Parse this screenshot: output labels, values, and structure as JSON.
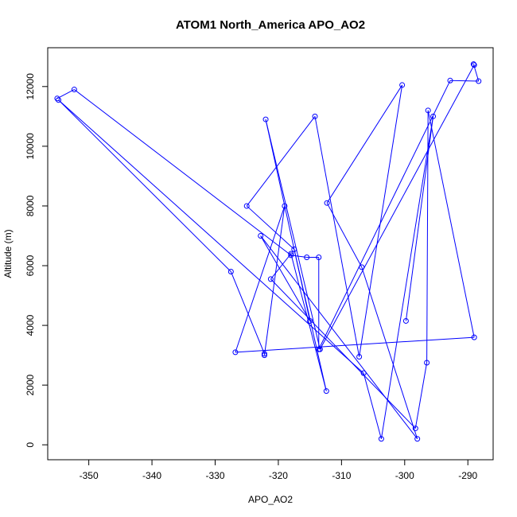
{
  "chart_data": {
    "type": "line",
    "title": "ATOM1 North_America APO_AO2",
    "xlabel": "APO_AO2",
    "ylabel": "Altitude (m)",
    "xlim": [
      -356.5,
      -286
    ],
    "ylim": [
      -500,
      13300
    ],
    "xticks": [
      -350,
      -340,
      -330,
      -320,
      -310,
      -300,
      -290
    ],
    "yticks": [
      0,
      2000,
      4000,
      6000,
      8000,
      10000,
      12000
    ],
    "grid": false,
    "color": "#0000ff",
    "series": [
      {
        "points": [
          [
            -355.0,
            11600
          ],
          [
            -352.3,
            11900
          ],
          [
            -318.0,
            6350
          ],
          [
            -315.5,
            6280
          ],
          [
            -313.6,
            6280
          ],
          [
            -313.6,
            3200
          ],
          [
            -292.8,
            12200
          ],
          [
            -288.3,
            12180
          ],
          [
            -289.1,
            12750
          ],
          [
            -289.0,
            12720
          ],
          [
            -313.4,
            3200
          ],
          [
            -322.0,
            10900
          ],
          [
            -315.0,
            4150
          ],
          [
            -322.8,
            7000
          ],
          [
            -298.0,
            200
          ],
          [
            -306.8,
            5950
          ],
          [
            -312.3,
            8100
          ],
          [
            -300.4,
            12050
          ],
          [
            -307.2,
            2950
          ],
          [
            -314.2,
            11000
          ],
          [
            -325.0,
            8000
          ],
          [
            -317.5,
            6550
          ],
          [
            -312.4,
            1800
          ],
          [
            -318.0,
            6400
          ],
          [
            -321.2,
            5550
          ],
          [
            -298.3,
            550
          ],
          [
            -296.5,
            2750
          ],
          [
            -296.3,
            11200
          ],
          [
            -289.0,
            3600
          ],
          [
            -326.8,
            3100
          ],
          [
            -319.0,
            8000
          ],
          [
            -322.2,
            3000
          ],
          [
            -322.2,
            3050
          ],
          [
            -327.5,
            5800
          ],
          [
            -354.8,
            11550
          ],
          [
            -306.5,
            2400
          ],
          [
            -303.7,
            200
          ],
          [
            -295.5,
            11000
          ],
          [
            -299.8,
            4150
          ]
        ]
      }
    ]
  }
}
